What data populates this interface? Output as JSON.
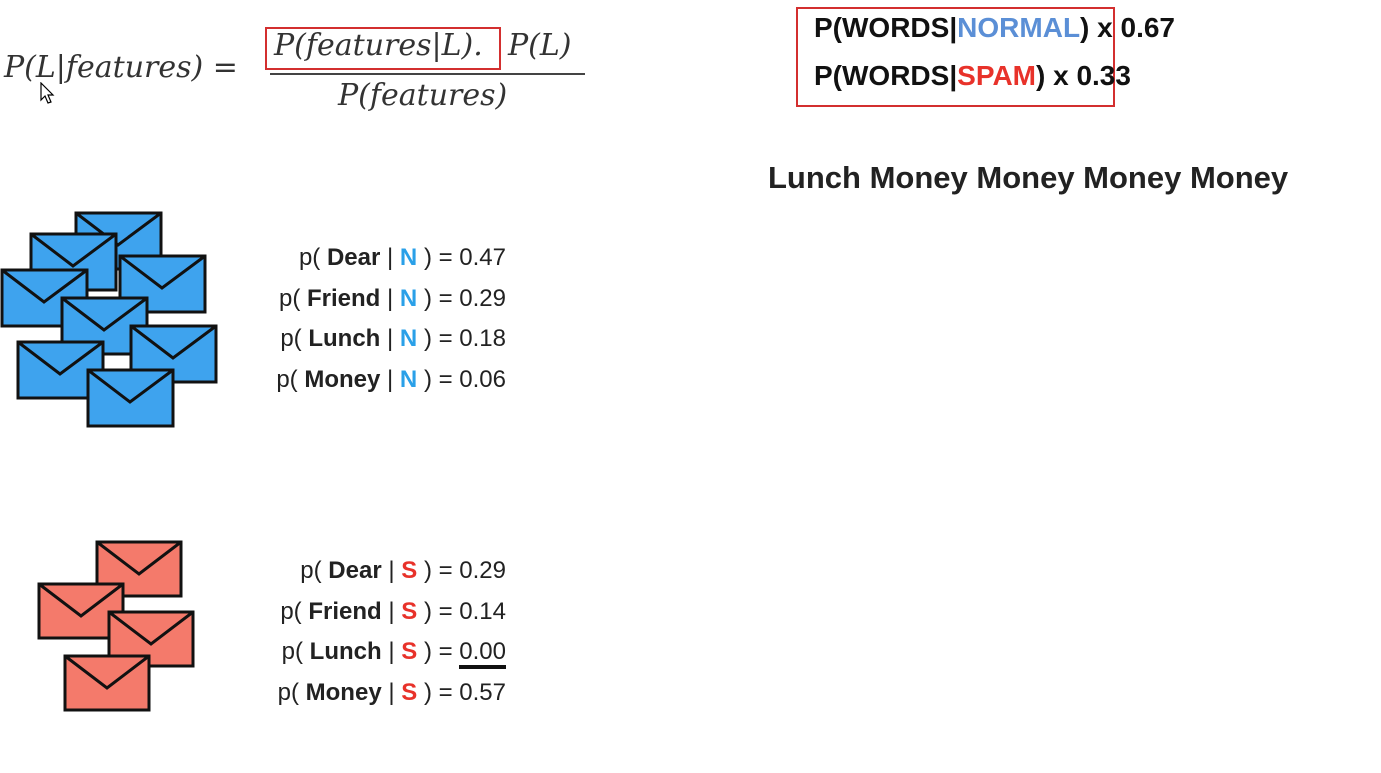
{
  "formula": {
    "lhs": "P(L|features) =",
    "numerator_likelihood": "P(features|L).",
    "numerator_prior": "P(L)",
    "denominator": "P(features)"
  },
  "priors": {
    "normal_prefix": "P(WORDS|",
    "normal_class": "NORMAL",
    "normal_suffix": ") x 0.67",
    "spam_prefix": "P(WORDS|",
    "spam_class": "SPAM",
    "spam_suffix": ") x 0.33"
  },
  "message": "Lunch Money Money Money Money",
  "normal_probs": [
    {
      "prefix": "p(",
      "word": "Dear",
      "sep": "|",
      "label": "N",
      "suffix": ") = ",
      "value": "0.47"
    },
    {
      "prefix": "p(",
      "word": "Friend",
      "sep": "|",
      "label": "N",
      "suffix": ") = ",
      "value": "0.29"
    },
    {
      "prefix": "p(",
      "word": "Lunch",
      "sep": "|",
      "label": "N",
      "suffix": ") = ",
      "value": "0.18"
    },
    {
      "prefix": "p(",
      "word": "Money",
      "sep": "|",
      "label": "N",
      "suffix": ") = ",
      "value": "0.06"
    }
  ],
  "spam_probs": [
    {
      "prefix": "p(",
      "word": "Dear",
      "sep": "|",
      "label": "S",
      "suffix": ") = ",
      "value": "0.29"
    },
    {
      "prefix": "p(",
      "word": "Friend",
      "sep": "|",
      "label": "S",
      "suffix": ") = ",
      "value": "0.14"
    },
    {
      "prefix": "p(",
      "word": "Lunch",
      "sep": "|",
      "label": "S",
      "suffix": ") = ",
      "value": "0.00"
    },
    {
      "prefix": "p(",
      "word": "Money",
      "sep": "|",
      "label": "S",
      "suffix": ") = ",
      "value": "0.57"
    }
  ],
  "colors": {
    "normal_envelope": "#3ea3ee",
    "spam_envelope": "#f47a6b",
    "highlight_box": "#d32f2f",
    "normal_label": "#2aa0e8",
    "spam_label": "#e8322a",
    "normal_word": "#5b8fd6"
  },
  "icons": [
    "normal-envelope-stack-icon",
    "spam-envelope-stack-icon",
    "mouse-cursor-icon"
  ]
}
